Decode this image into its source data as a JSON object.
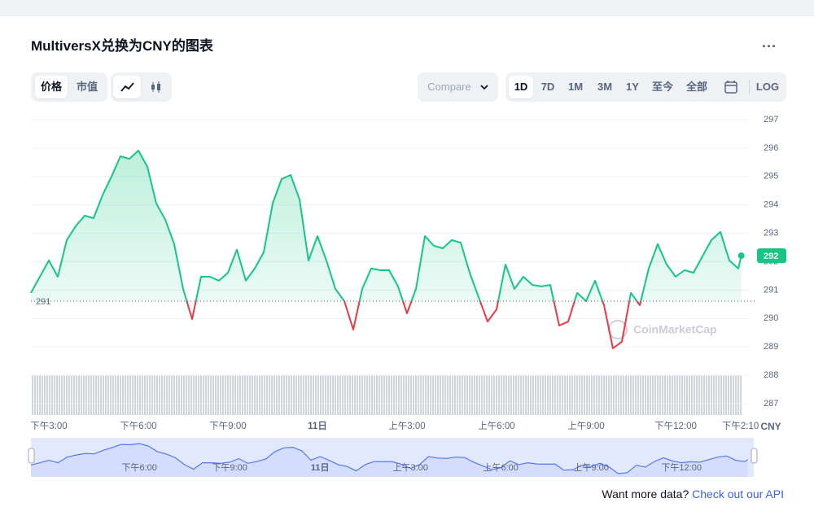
{
  "header": {
    "title": "MultiversX兑换为CNY的图表",
    "menu": "..."
  },
  "controls": {
    "metric_tabs": [
      "价格",
      "市值"
    ],
    "compare": "Compare",
    "ranges": [
      "1D",
      "7D",
      "1M",
      "3M",
      "1Y",
      "至今",
      "全部"
    ],
    "log": "LOG"
  },
  "chart_data": {
    "type": "line",
    "x": [
      14.4,
      14.7,
      15,
      15.3,
      15.6,
      15.9,
      16.2,
      16.5,
      16.8,
      17.1,
      17.4,
      17.7,
      18,
      18.3,
      18.6,
      18.9,
      19.2,
      19.5,
      19.8,
      20.1,
      20.4,
      20.7,
      21,
      21.3,
      21.6,
      21.9,
      22.2,
      22.5,
      22.8,
      23.1,
      23.4,
      23.7,
      24,
      24.3,
      24.6,
      24.9,
      25.2,
      25.5,
      25.8,
      26.1,
      26.4,
      26.7,
      27,
      27.3,
      27.6,
      27.9,
      28.2,
      28.5,
      28.8,
      29.1,
      29.4,
      29.7,
      30,
      30.3,
      30.6,
      30.9,
      31.2,
      31.5,
      31.8,
      32.1,
      32.4,
      32.7,
      33,
      33.3,
      33.6,
      33.9,
      34.2,
      34.5,
      34.8,
      35.1,
      35.4,
      35.7,
      36,
      36.3,
      36.6,
      36.9,
      37.2,
      37.5,
      37.8,
      38.1,
      38.2
    ],
    "values": [
      290.9,
      291.47,
      292.04,
      291.47,
      292.76,
      293.25,
      293.62,
      293.53,
      294.34,
      295,
      295.71,
      295.62,
      295.91,
      295.34,
      294.05,
      293.48,
      292.62,
      291.04,
      289.98,
      291.47,
      291.47,
      291.33,
      291.61,
      292.42,
      291.33,
      291.76,
      292.33,
      294.05,
      294.91,
      295.05,
      294.19,
      292.04,
      292.9,
      292.04,
      291.04,
      290.61,
      289.61,
      291.04,
      291.76,
      291.7,
      291.7,
      291.13,
      290.18,
      291.04,
      292.9,
      292.56,
      292.47,
      292.76,
      292.67,
      291.61,
      290.75,
      289.89,
      290.32,
      291.9,
      291.04,
      291.47,
      291.18,
      291.13,
      291.18,
      289.75,
      289.89,
      290.9,
      290.61,
      291.33,
      290.47,
      288.95,
      289.18,
      290.9,
      290.47,
      291.76,
      292.62,
      291.9,
      291.47,
      291.7,
      291.61,
      292.19,
      292.76,
      293.05,
      292.04,
      291.76,
      292.21
    ],
    "color_up": "#16c784",
    "color_down": "#ea3943",
    "baseline": {
      "value": 290.61,
      "label": "291"
    },
    "current_label": "292",
    "ylim": [
      286.6,
      297.2
    ],
    "yticks": [
      287,
      288,
      289,
      290,
      291,
      292,
      293,
      294,
      295,
      296,
      297
    ],
    "xlim": [
      14.4,
      38.4
    ],
    "xticks": [
      {
        "value": 15,
        "label": "下午3:00"
      },
      {
        "value": 18,
        "label": "下午6:00"
      },
      {
        "value": 21,
        "label": "下午9:00"
      },
      {
        "value": 24,
        "label": "11日"
      },
      {
        "value": 27,
        "label": "上午3:00"
      },
      {
        "value": 30,
        "label": "上午6:00"
      },
      {
        "value": 33,
        "label": "上午9:00"
      },
      {
        "value": 36,
        "label": "下午12:00"
      },
      {
        "value": 38.17,
        "label": "下午2:10"
      }
    ],
    "currency": "CNY",
    "watermark": "CoinMarketCap",
    "grid": true
  },
  "footer": {
    "text": "Want more data?",
    "link": "Check out our API"
  }
}
